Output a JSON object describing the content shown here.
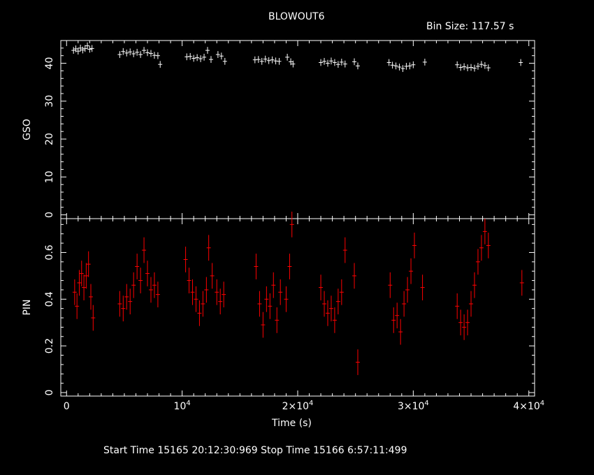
{
  "header": {
    "title": "BLOWOUT6",
    "bin_size": "Bin Size:  117.57  s"
  },
  "footer": {
    "times": "Start Time 15165  20:12:30:969    Stop Time 15166   6:57:11:499"
  },
  "chart_data": {
    "type": "scatter",
    "xlabel": "Time (s)",
    "xlim": [
      -500,
      40500
    ],
    "x_ticks": [
      {
        "value": 0,
        "label": "0"
      },
      {
        "value": 10000,
        "label": "10^4"
      },
      {
        "value": 20000,
        "label": "2×10^4"
      },
      {
        "value": 30000,
        "label": "3×10^4"
      },
      {
        "value": 40000,
        "label": "4×10^4"
      }
    ],
    "panels": [
      {
        "ylabel": "GSO",
        "color": "#ffffff",
        "ylim": [
          -1,
          46
        ],
        "yticks": [
          0,
          10,
          20,
          30,
          40
        ],
        "points": [
          [
            600,
            43.4
          ],
          [
            800,
            43.8
          ],
          [
            1000,
            43.2
          ],
          [
            1200,
            44.0
          ],
          [
            1400,
            43.5
          ],
          [
            1600,
            43.9
          ],
          [
            1800,
            44.6
          ],
          [
            2000,
            43.7
          ],
          [
            2200,
            43.9
          ],
          [
            4600,
            42.3
          ],
          [
            4900,
            43.1
          ],
          [
            5200,
            42.7
          ],
          [
            5500,
            43.0
          ],
          [
            5800,
            42.5
          ],
          [
            6100,
            42.9
          ],
          [
            6400,
            42.3
          ],
          [
            6700,
            43.4
          ],
          [
            7000,
            42.8
          ],
          [
            7300,
            42.6
          ],
          [
            7600,
            42.1
          ],
          [
            7900,
            42.0
          ],
          [
            8100,
            39.7
          ],
          [
            10400,
            41.7
          ],
          [
            10700,
            41.8
          ],
          [
            11000,
            41.3
          ],
          [
            11300,
            41.5
          ],
          [
            11600,
            41.2
          ],
          [
            11900,
            41.6
          ],
          [
            12200,
            43.4
          ],
          [
            12500,
            41.0
          ],
          [
            13100,
            42.3
          ],
          [
            13400,
            41.9
          ],
          [
            13700,
            40.5
          ],
          [
            16300,
            40.9
          ],
          [
            16600,
            41.0
          ],
          [
            16900,
            40.5
          ],
          [
            17200,
            41.1
          ],
          [
            17500,
            40.7
          ],
          [
            17800,
            40.9
          ],
          [
            18100,
            40.6
          ],
          [
            18400,
            40.5
          ],
          [
            19100,
            41.6
          ],
          [
            19400,
            40.4
          ],
          [
            19600,
            39.8
          ],
          [
            22000,
            40.2
          ],
          [
            22300,
            40.5
          ],
          [
            22600,
            40.0
          ],
          [
            22900,
            40.6
          ],
          [
            23200,
            40.2
          ],
          [
            23500,
            39.7
          ],
          [
            23800,
            40.3
          ],
          [
            24100,
            39.8
          ],
          [
            24900,
            40.4
          ],
          [
            25200,
            39.3
          ],
          [
            27900,
            40.2
          ],
          [
            28200,
            39.5
          ],
          [
            28500,
            39.3
          ],
          [
            28800,
            39.0
          ],
          [
            29100,
            38.6
          ],
          [
            29400,
            39.2
          ],
          [
            29700,
            39.3
          ],
          [
            30000,
            39.6
          ],
          [
            31000,
            40.3
          ],
          [
            33800,
            39.6
          ],
          [
            34100,
            38.9
          ],
          [
            34400,
            39.1
          ],
          [
            34700,
            38.8
          ],
          [
            35000,
            38.9
          ],
          [
            35300,
            38.7
          ],
          [
            35600,
            39.2
          ],
          [
            35900,
            39.7
          ],
          [
            36200,
            39.4
          ],
          [
            36500,
            38.8
          ],
          [
            39300,
            40.2
          ]
        ]
      },
      {
        "ylabel": "PIN",
        "color": "#ff0000",
        "ylim": [
          -0.015,
          0.745
        ],
        "yticks": [
          0,
          0.2,
          0.4,
          0.6
        ],
        "points": [
          [
            700,
            0.43
          ],
          [
            900,
            0.37
          ],
          [
            1100,
            0.47
          ],
          [
            1300,
            0.51
          ],
          [
            1500,
            0.45
          ],
          [
            1700,
            0.5
          ],
          [
            1900,
            0.55
          ],
          [
            2100,
            0.41
          ],
          [
            2300,
            0.32
          ],
          [
            4600,
            0.38
          ],
          [
            4900,
            0.36
          ],
          [
            5200,
            0.41
          ],
          [
            5500,
            0.39
          ],
          [
            5800,
            0.46
          ],
          [
            6100,
            0.54
          ],
          [
            6400,
            0.48
          ],
          [
            6700,
            0.61
          ],
          [
            7000,
            0.51
          ],
          [
            7300,
            0.44
          ],
          [
            7600,
            0.46
          ],
          [
            7900,
            0.42
          ],
          [
            10300,
            0.57
          ],
          [
            10600,
            0.48
          ],
          [
            10900,
            0.43
          ],
          [
            11200,
            0.4
          ],
          [
            11500,
            0.34
          ],
          [
            11800,
            0.38
          ],
          [
            12100,
            0.44
          ],
          [
            12300,
            0.62
          ],
          [
            12600,
            0.5
          ],
          [
            13000,
            0.43
          ],
          [
            13300,
            0.39
          ],
          [
            13600,
            0.42
          ],
          [
            16400,
            0.54
          ],
          [
            16700,
            0.38
          ],
          [
            17000,
            0.29
          ],
          [
            17300,
            0.4
          ],
          [
            17600,
            0.37
          ],
          [
            17900,
            0.46
          ],
          [
            18200,
            0.31
          ],
          [
            18500,
            0.43
          ],
          [
            19000,
            0.4
          ],
          [
            19300,
            0.54
          ],
          [
            19500,
            0.72
          ],
          [
            22000,
            0.45
          ],
          [
            22300,
            0.38
          ],
          [
            22600,
            0.34
          ],
          [
            22900,
            0.36
          ],
          [
            23200,
            0.31
          ],
          [
            23500,
            0.39
          ],
          [
            23800,
            0.43
          ],
          [
            24100,
            0.61
          ],
          [
            24900,
            0.5
          ],
          [
            25200,
            0.13
          ],
          [
            28000,
            0.46
          ],
          [
            28300,
            0.31
          ],
          [
            28600,
            0.33
          ],
          [
            28900,
            0.26
          ],
          [
            29200,
            0.38
          ],
          [
            29500,
            0.44
          ],
          [
            29800,
            0.52
          ],
          [
            30100,
            0.63
          ],
          [
            30800,
            0.45
          ],
          [
            33800,
            0.37
          ],
          [
            34100,
            0.3
          ],
          [
            34400,
            0.28
          ],
          [
            34700,
            0.3
          ],
          [
            35000,
            0.38
          ],
          [
            35300,
            0.46
          ],
          [
            35600,
            0.56
          ],
          [
            35900,
            0.62
          ],
          [
            36200,
            0.69
          ],
          [
            36500,
            0.63
          ],
          [
            39400,
            0.47
          ]
        ]
      }
    ]
  }
}
